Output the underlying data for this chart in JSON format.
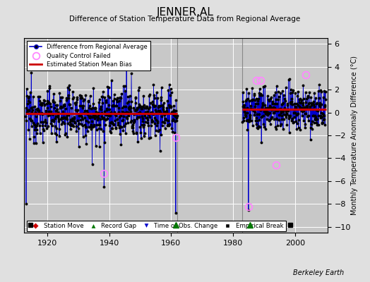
{
  "title": "JENNER,AL",
  "subtitle": "Difference of Station Temperature Data from Regional Average",
  "ylabel": "Monthly Temperature Anomaly Difference (°C)",
  "xlabel_ticks": [
    1920,
    1940,
    1960,
    1980,
    2000
  ],
  "xlim": [
    1912.5,
    2010.5
  ],
  "ylim": [
    -10.5,
    6.5
  ],
  "yticks": [
    -10,
    -8,
    -6,
    -4,
    -2,
    0,
    2,
    4,
    6
  ],
  "background_color": "#e0e0e0",
  "plot_bg_color": "#c8c8c8",
  "grid_color": "#ffffff",
  "segment1_x_start": 1913.0,
  "segment1_x_end": 1962.0,
  "segment2_x_start": 1983.0,
  "segment2_x_end": 2010.0,
  "bias1": -0.1,
  "bias2": 0.25,
  "record_gaps": [
    1961.5,
    1985.5
  ],
  "empirical_breaks": [
    1914.5,
    1998.5
  ],
  "qc_failed": [
    [
      1938.3,
      -5.3
    ],
    [
      1961.5,
      -2.2
    ],
    [
      1985.0,
      -8.2
    ],
    [
      1987.5,
      2.8
    ],
    [
      1989.0,
      2.8
    ],
    [
      1994.0,
      -4.6
    ],
    [
      2003.5,
      3.3
    ]
  ],
  "line_color": "#0000cc",
  "dot_color": "#000000",
  "bias_color": "#cc0000",
  "qc_color": "#ff88ff",
  "station_move_color": "#cc0000",
  "record_gap_color": "#007700",
  "obs_change_color": "#0000cc",
  "empirical_break_color": "#000000",
  "gap_vline_color": "#888888",
  "watermark": "Berkeley Earth"
}
